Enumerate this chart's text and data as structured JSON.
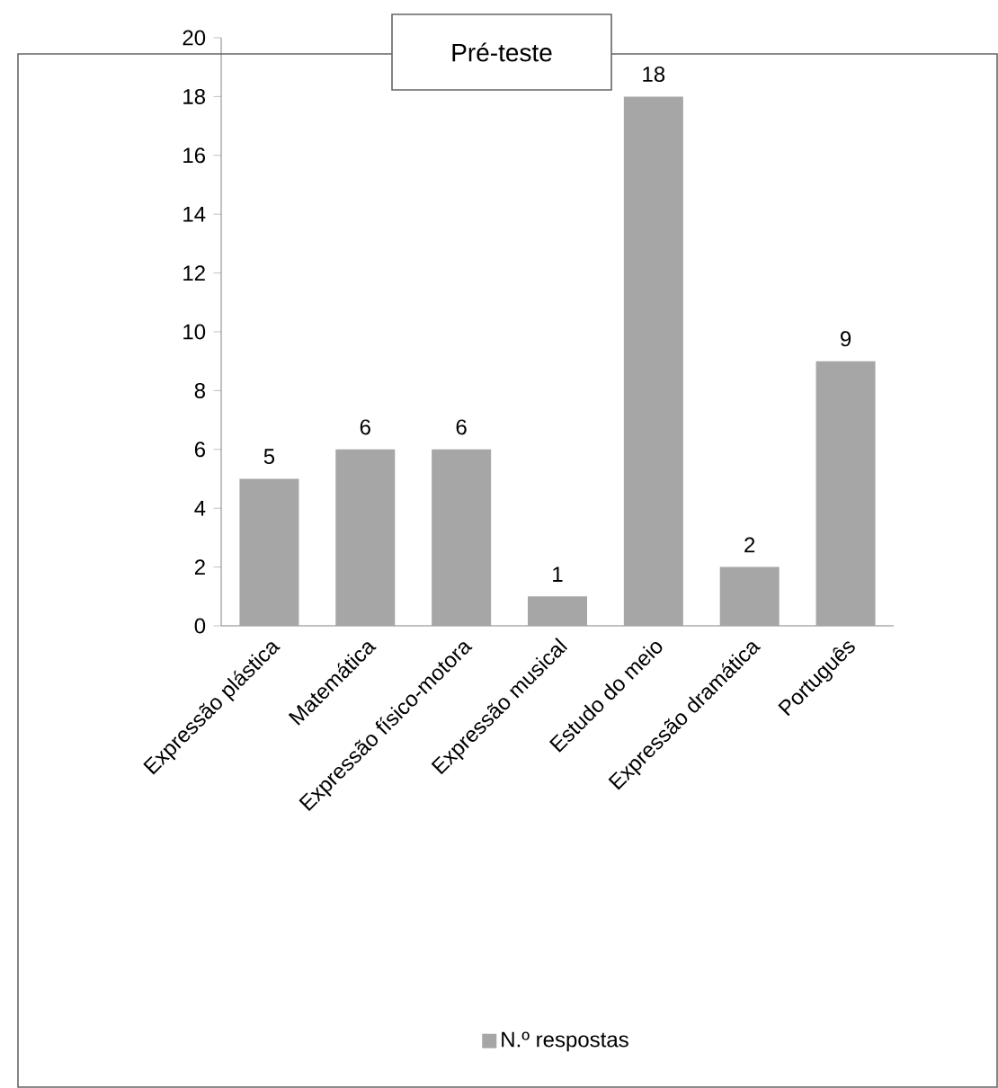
{
  "chart_data": {
    "type": "bar",
    "title": "Pré-teste",
    "categories": [
      "Expressão plástica",
      "Matemática",
      "Expressão físico-motora",
      "Expressão musical",
      "Estudo do meio",
      "Expressão dramática",
      "Português"
    ],
    "series": [
      {
        "name": "N.º respostas",
        "color": "#a6a6a6",
        "values": [
          5,
          6,
          6,
          1,
          18,
          2,
          9
        ]
      }
    ],
    "ylim": [
      0,
      20
    ],
    "yticks": [
      0,
      2,
      4,
      6,
      8,
      10,
      12,
      14,
      16,
      18,
      20
    ],
    "data_labels": true,
    "legend": "bottom",
    "grid": false
  }
}
